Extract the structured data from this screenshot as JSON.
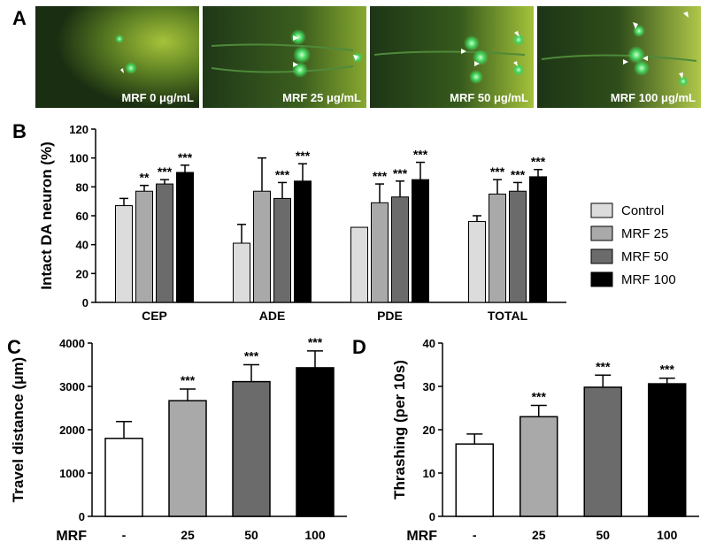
{
  "panel_a": {
    "letter": "A",
    "images": [
      {
        "label": "MRF 0 μg/mL"
      },
      {
        "label": "MRF 25 μg/mL"
      },
      {
        "label": "MRF 50 μg/mL"
      },
      {
        "label": "MRF 100 μg/mL"
      }
    ]
  },
  "chart_data": [
    {
      "panel": "B",
      "type": "bar",
      "ylabel": "Intact DA neuron (%)",
      "ylim": [
        0,
        120
      ],
      "yticks": [
        0,
        20,
        40,
        60,
        80,
        100,
        120
      ],
      "categories": [
        "CEP",
        "ADE",
        "PDE",
        "TOTAL"
      ],
      "legend_position": "right",
      "series": [
        {
          "name": "Control",
          "color": "#dcdcdc",
          "values": [
            67,
            41,
            52,
            56
          ],
          "errors": [
            5,
            13,
            0,
            4
          ],
          "sig": [
            "",
            "",
            "",
            ""
          ]
        },
        {
          "name": "MRF 25",
          "color": "#a9a9a9",
          "values": [
            77,
            77,
            69,
            75
          ],
          "errors": [
            4,
            23,
            13,
            10
          ],
          "sig": [
            "**",
            "",
            "***",
            "***"
          ]
        },
        {
          "name": "MRF 50",
          "color": "#6b6b6b",
          "values": [
            82,
            72,
            73,
            77
          ],
          "errors": [
            3,
            11,
            11,
            6
          ],
          "sig": [
            "***",
            "***",
            "***",
            "***"
          ]
        },
        {
          "name": "MRF 100",
          "color": "#000000",
          "values": [
            90,
            84,
            85,
            87
          ],
          "errors": [
            5,
            12,
            12,
            5
          ],
          "sig": [
            "***",
            "***",
            "***",
            "***"
          ]
        }
      ]
    },
    {
      "panel": "C",
      "type": "bar",
      "ylabel": "Travel distance (μm)",
      "xlabel": "MRF",
      "ylim": [
        0,
        4000
      ],
      "yticks": [
        0,
        1000,
        2000,
        3000,
        4000
      ],
      "categories": [
        "-",
        "25",
        "50",
        "100"
      ],
      "colors": [
        "#ffffff",
        "#a9a9a9",
        "#6b6b6b",
        "#000000"
      ],
      "values": [
        1800,
        2670,
        3110,
        3430
      ],
      "errors": [
        390,
        270,
        390,
        390
      ],
      "sig": [
        "",
        "***",
        "***",
        "***"
      ]
    },
    {
      "panel": "D",
      "type": "bar",
      "ylabel": "Thrashing (per 10s)",
      "xlabel": "MRF",
      "ylim": [
        0,
        40
      ],
      "yticks": [
        0,
        10,
        20,
        30,
        40
      ],
      "categories": [
        "-",
        "25",
        "50",
        "100"
      ],
      "colors": [
        "#ffffff",
        "#a9a9a9",
        "#6b6b6b",
        "#000000"
      ],
      "values": [
        16.7,
        23.0,
        29.8,
        30.6
      ],
      "errors": [
        2.3,
        2.6,
        2.8,
        1.3
      ],
      "sig": [
        "",
        "***",
        "***",
        "***"
      ]
    }
  ]
}
